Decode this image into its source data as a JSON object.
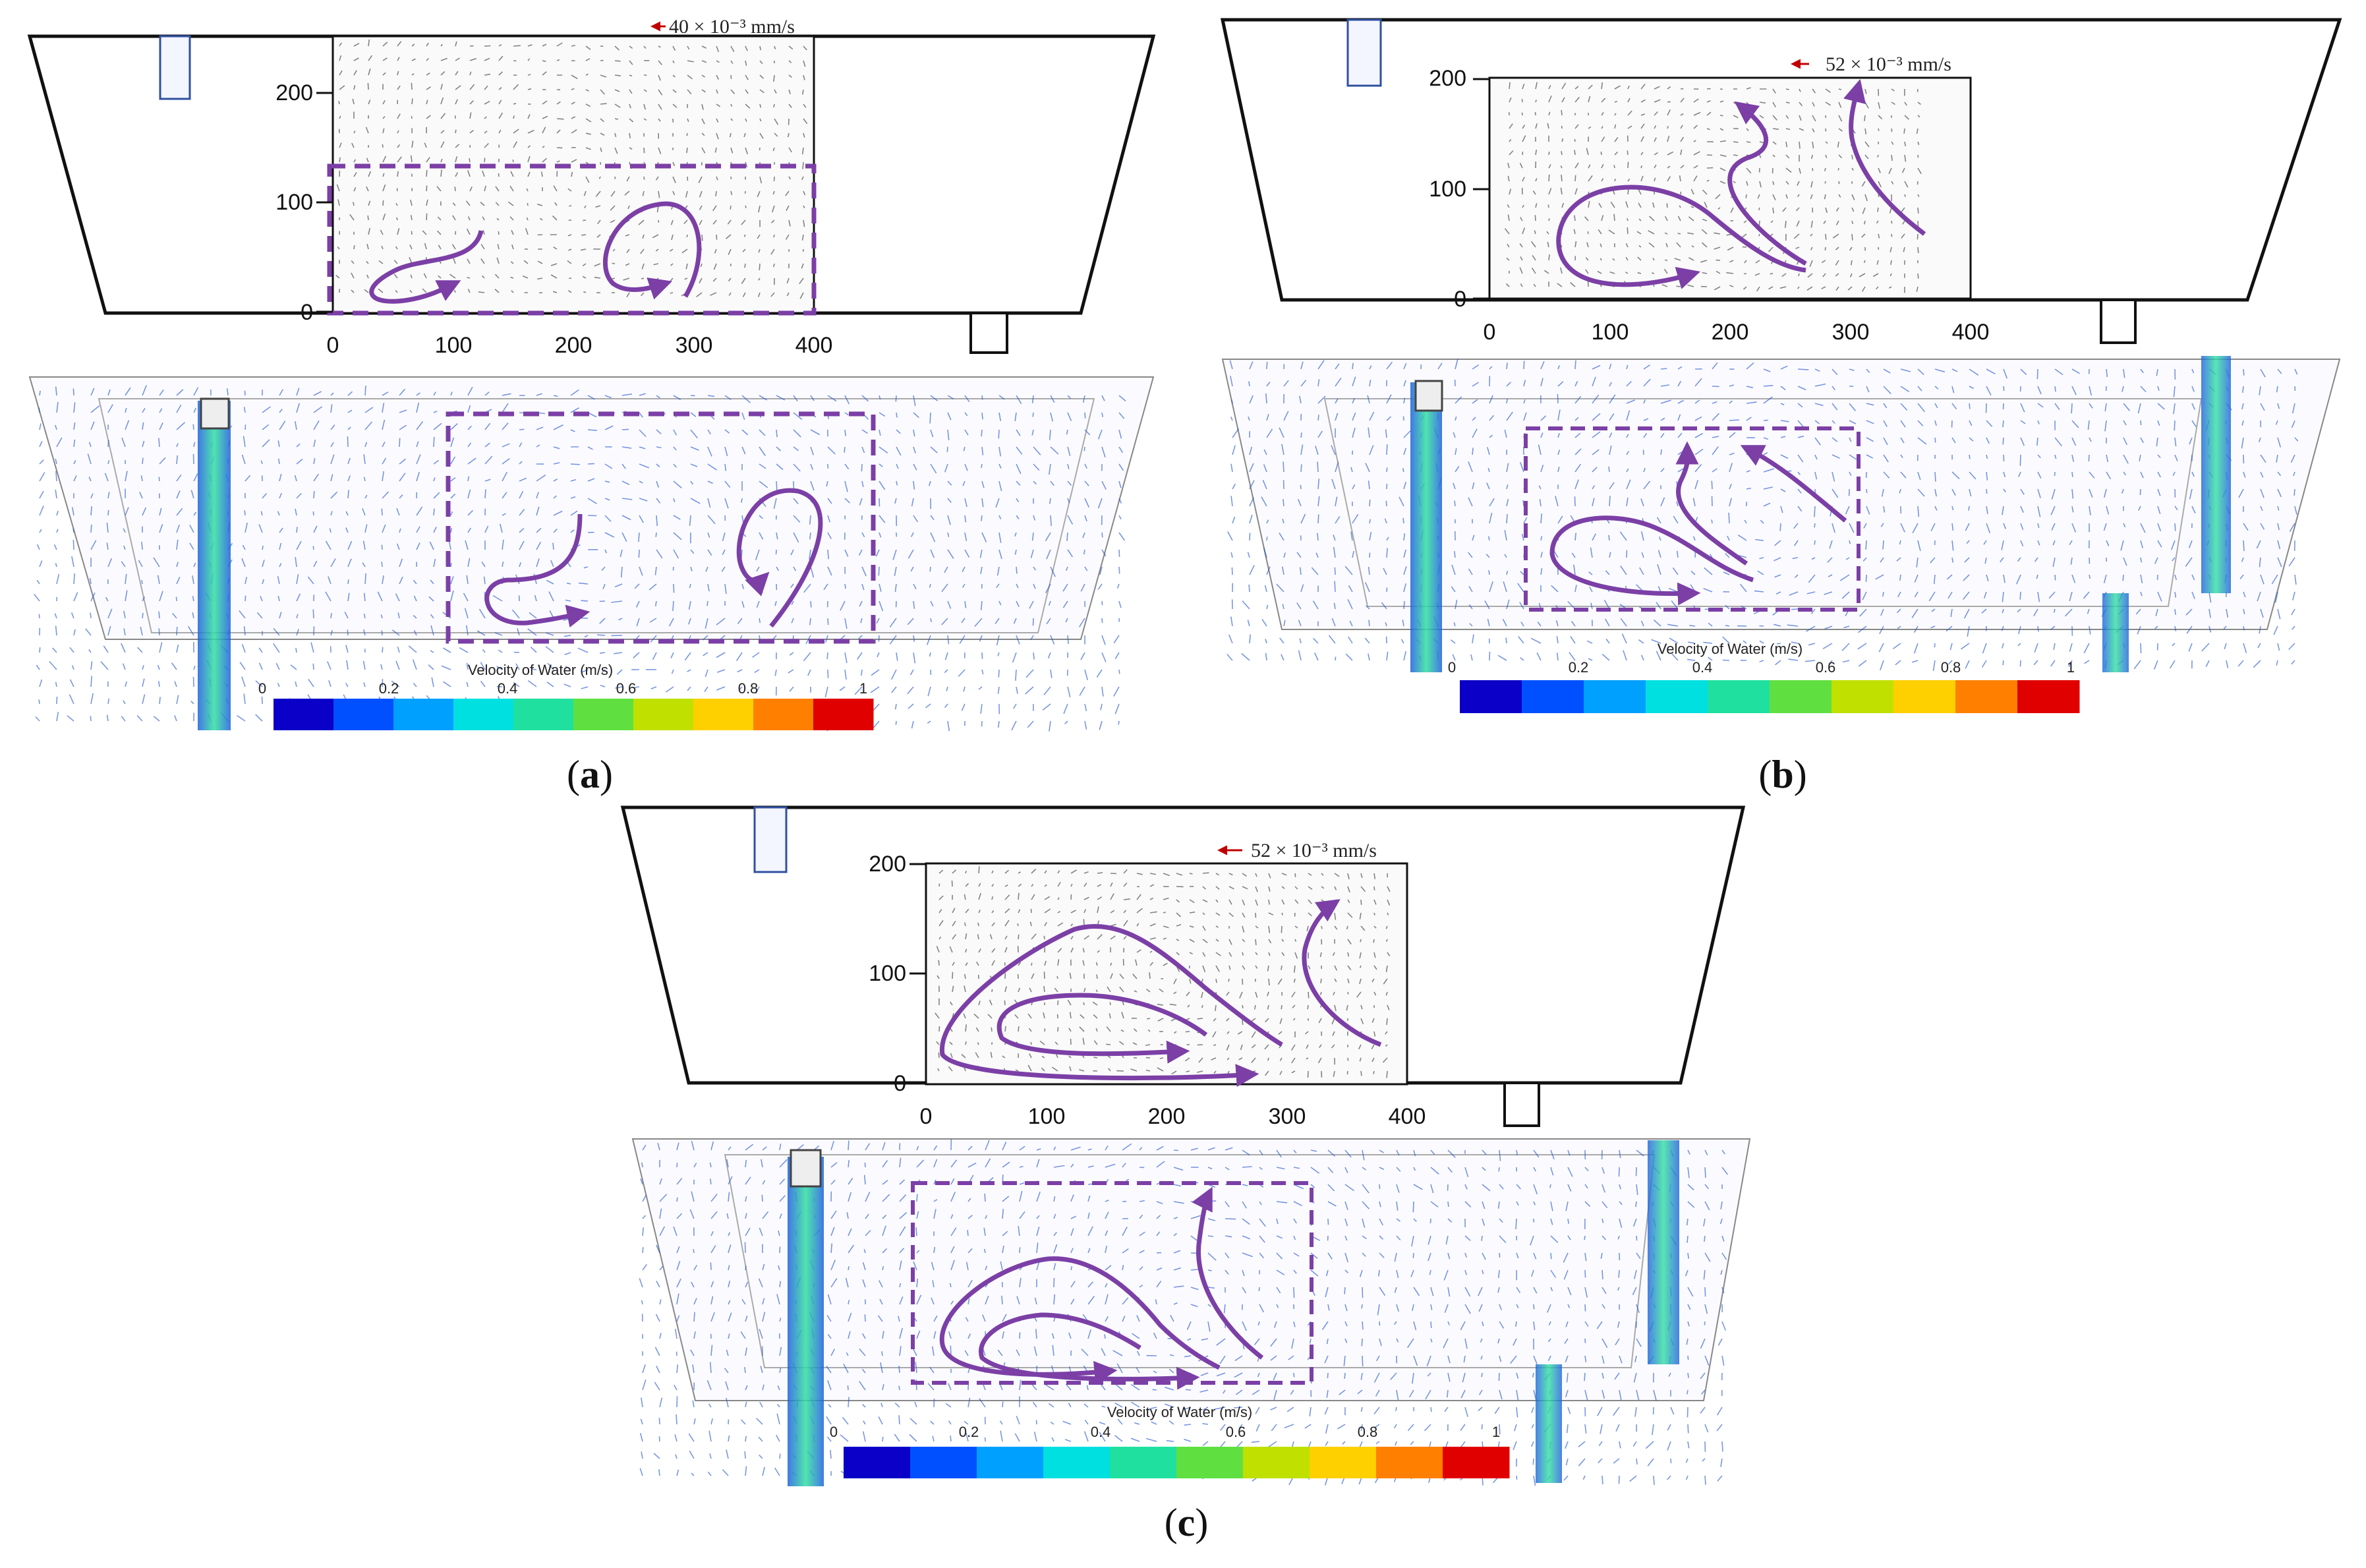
{
  "panels": [
    {
      "id": "a",
      "label_open": "(",
      "label_letter": "a",
      "label_close": ")",
      "scale_text": "40 × 10⁻³ mm/s",
      "x_ticks": [
        "0",
        "100",
        "200",
        "300",
        "400"
      ],
      "y_ticks": [
        "0",
        "100",
        "200"
      ],
      "colorbar_title": "Velocity of Water (m/s)",
      "colorbar_ticks": [
        "0",
        "0.2",
        "0.4",
        "0.6",
        "0.8",
        "1"
      ]
    },
    {
      "id": "b",
      "label_open": "(",
      "label_letter": "b",
      "label_close": ")",
      "scale_text": "52 × 10⁻³ mm/s",
      "x_ticks": [
        "0",
        "100",
        "200",
        "300",
        "400"
      ],
      "y_ticks": [
        "0",
        "100",
        "200"
      ],
      "colorbar_title": "Velocity of Water (m/s)",
      "colorbar_ticks": [
        "0",
        "0.2",
        "0.4",
        "0.6",
        "0.8",
        "1"
      ]
    },
    {
      "id": "c",
      "label_open": "(",
      "label_letter": "c",
      "label_close": ")",
      "scale_text": "52 × 10⁻³ mm/s",
      "x_ticks": [
        "0",
        "100",
        "200",
        "300",
        "400"
      ],
      "y_ticks": [
        "0",
        "100",
        "200"
      ],
      "colorbar_title": "Velocity of Water (m/s)",
      "colorbar_ticks": [
        "0",
        "0.2",
        "0.4",
        "0.6",
        "0.8",
        "1"
      ]
    }
  ],
  "colors": {
    "vortex_arrow": "#7b3fa6",
    "dashed_box": "#7b3fa6",
    "outline": "#111111",
    "colormap": [
      "#0a00c8",
      "#0050ff",
      "#00a0ff",
      "#00e0e0",
      "#20e0a0",
      "#60e040",
      "#c0e000",
      "#ffd000",
      "#ff8000",
      "#e00000"
    ],
    "vector": "#2050d0",
    "plume": "#30d0b0"
  },
  "icons": [
    "inlet-pipe-icon",
    "outlet-pipe-icon",
    "scale-arrow-icon"
  ]
}
